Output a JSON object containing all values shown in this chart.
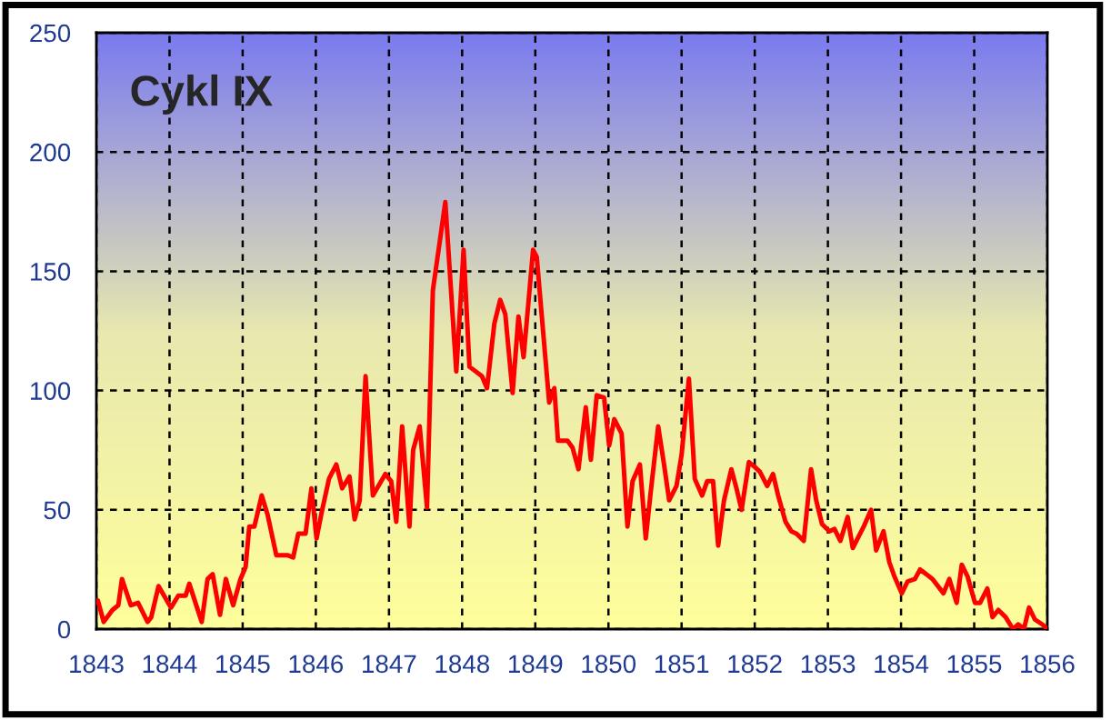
{
  "chart_data": {
    "type": "line",
    "title": "Cykl IX",
    "series": [
      {
        "color": "#ff0000",
        "x": [
          1843.02,
          1843.1,
          1843.22,
          1843.3,
          1843.35,
          1843.47,
          1843.57,
          1843.7,
          1843.75,
          1843.85,
          1844.02,
          1844.12,
          1844.22,
          1844.27,
          1844.44,
          1844.52,
          1844.59,
          1844.69,
          1844.77,
          1844.87,
          1844.97,
          1845.04,
          1845.09,
          1845.16,
          1845.26,
          1845.34,
          1845.46,
          1845.54,
          1845.61,
          1845.69,
          1845.76,
          1845.86,
          1845.94,
          1846.01,
          1846.08,
          1846.18,
          1846.28,
          1846.36,
          1846.46,
          1846.53,
          1846.6,
          1846.68,
          1846.78,
          1846.95,
          1847.03,
          1847.1,
          1847.18,
          1847.28,
          1847.33,
          1847.42,
          1847.52,
          1847.6,
          1847.77,
          1847.92,
          1848.02,
          1848.1,
          1848.27,
          1848.34,
          1848.44,
          1848.52,
          1848.59,
          1848.69,
          1848.77,
          1848.84,
          1848.97,
          1849.02,
          1849.19,
          1849.26,
          1849.31,
          1849.44,
          1849.51,
          1849.59,
          1849.69,
          1849.76,
          1849.84,
          1849.94,
          1850.01,
          1850.08,
          1850.18,
          1850.26,
          1850.33,
          1850.43,
          1850.51,
          1850.58,
          1850.68,
          1850.76,
          1850.83,
          1850.93,
          1851.0,
          1851.1,
          1851.18,
          1851.28,
          1851.35,
          1851.43,
          1851.5,
          1851.58,
          1851.68,
          1851.75,
          1851.82,
          1851.92,
          1852.0,
          1852.07,
          1852.17,
          1852.25,
          1852.32,
          1852.42,
          1852.5,
          1852.57,
          1852.67,
          1852.77,
          1852.84,
          1852.92,
          1853.02,
          1853.09,
          1853.17,
          1853.27,
          1853.34,
          1853.49,
          1853.59,
          1853.66,
          1853.76,
          1853.84,
          1853.91,
          1854.01,
          1854.09,
          1854.19,
          1854.26,
          1854.43,
          1854.58,
          1854.66,
          1854.76,
          1854.83,
          1854.91,
          1855.01,
          1855.08,
          1855.18,
          1855.25,
          1855.33,
          1855.43,
          1855.53,
          1855.6,
          1855.68,
          1855.75,
          1855.83,
          1855.93,
          1856.0
        ],
        "values": [
          12,
          3,
          8,
          10,
          21,
          10,
          11,
          3,
          5,
          18,
          9,
          14,
          14,
          19,
          3,
          21,
          23,
          6,
          21,
          10,
          21,
          26,
          43,
          43,
          56,
          48,
          31,
          31,
          31,
          30,
          40,
          40,
          59,
          38,
          49,
          63,
          69,
          59,
          64,
          46,
          54,
          106,
          56,
          65,
          62,
          45,
          85,
          43,
          75,
          85,
          51,
          142,
          179,
          108,
          159,
          110,
          106,
          101,
          128,
          138,
          132,
          99,
          131,
          114,
          159,
          156,
          95,
          101,
          79,
          79,
          76,
          67,
          93,
          71,
          98,
          97,
          77,
          88,
          82,
          43,
          62,
          69,
          38,
          58,
          85,
          69,
          54,
          60,
          73,
          105,
          63,
          56,
          62,
          62,
          35,
          54,
          67,
          59,
          50,
          70,
          68,
          66,
          60,
          65,
          56,
          45,
          41,
          40,
          37,
          67,
          54,
          44,
          41,
          42,
          37,
          47,
          34,
          43,
          50,
          33,
          41,
          28,
          22,
          15,
          20,
          21,
          25,
          21,
          15,
          21,
          11,
          27,
          22,
          11,
          11,
          17,
          5,
          8,
          5,
          0,
          2,
          0,
          9,
          4,
          2,
          0
        ]
      }
    ],
    "xlim": [
      1843,
      1856
    ],
    "xticks": [
      1843,
      1844,
      1845,
      1846,
      1847,
      1848,
      1849,
      1850,
      1851,
      1852,
      1853,
      1854,
      1855,
      1856
    ],
    "ylim": [
      0,
      250
    ],
    "yticks": [
      0,
      50,
      100,
      150,
      200,
      250
    ],
    "grid": true,
    "line_style": "solid",
    "marker": "none"
  }
}
